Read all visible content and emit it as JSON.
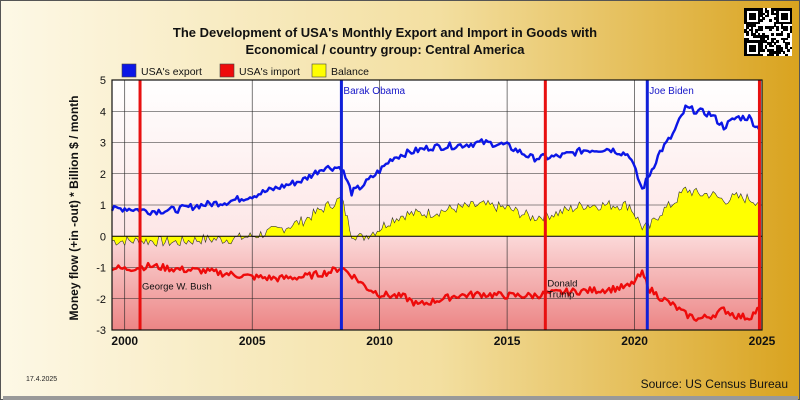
{
  "header": {
    "title_line1": "The Development of USA's Monthly Export and Import in Goods with",
    "title_line2": "Economical / country group: Central America"
  },
  "footer": {
    "date": "17.4.2025",
    "source": "Source: US Census Bureau"
  },
  "colors": {
    "export": "#0b16e6",
    "import": "#ee0b0b",
    "balance": "#ffff00",
    "president_marker_red": "#e81010",
    "president_marker_blue": "#1020d8"
  },
  "chart_data": {
    "type": "line",
    "title": "The Development of USA's Monthly Export and Import in Goods with Economical / country group: Central America",
    "ylabel": "Money flow (+in -out) * Billion $ / month",
    "xlabel": "",
    "xlim": [
      1999.5,
      2025.0
    ],
    "ylim": [
      -3,
      5
    ],
    "xticks": [
      2000,
      2005,
      2010,
      2015,
      2020,
      2025
    ],
    "yticks": [
      -3,
      -2,
      -1,
      0,
      1,
      2,
      3,
      4,
      5
    ],
    "grid": true,
    "legend": "top-left",
    "series": [
      {
        "name": "USA's export",
        "type": "line",
        "x": [
          1999.5,
          2000.0,
          2001.0,
          2002.0,
          2003.0,
          2004.0,
          2005.0,
          2006.0,
          2007.0,
          2007.8,
          2008.5,
          2008.9,
          2009.3,
          2010.0,
          2010.5,
          2011.0,
          2012.0,
          2013.0,
          2014.0,
          2014.7,
          2015.0,
          2016.0,
          2017.0,
          2018.0,
          2019.0,
          2019.8,
          2020.3,
          2020.6,
          2021.0,
          2021.5,
          2022.0,
          2022.5,
          2023.0,
          2023.5,
          2024.0,
          2024.5,
          2024.9
        ],
        "y": [
          0.85,
          0.9,
          0.8,
          0.85,
          1.0,
          1.1,
          1.3,
          1.55,
          1.8,
          2.2,
          2.2,
          1.4,
          1.6,
          2.1,
          2.5,
          2.65,
          2.85,
          2.9,
          3.0,
          2.95,
          2.9,
          2.5,
          2.55,
          2.75,
          2.8,
          2.6,
          1.5,
          2.0,
          2.7,
          3.25,
          4.1,
          4.0,
          3.9,
          3.5,
          3.8,
          3.8,
          3.4
        ]
      },
      {
        "name": "USA's import",
        "type": "line",
        "x": [
          1999.5,
          2000.0,
          2001.0,
          2002.0,
          2003.0,
          2004.0,
          2005.0,
          2006.0,
          2007.0,
          2008.0,
          2008.5,
          2009.0,
          2009.5,
          2010.0,
          2011.0,
          2011.5,
          2012.0,
          2013.0,
          2014.0,
          2015.0,
          2016.0,
          2017.0,
          2018.0,
          2019.0,
          2019.8,
          2020.3,
          2020.6,
          2021.0,
          2021.5,
          2022.0,
          2022.5,
          2023.0,
          2023.5,
          2024.0,
          2024.5,
          2024.9
        ],
        "y": [
          -1.0,
          -1.05,
          -0.95,
          -1.05,
          -1.1,
          -1.2,
          -1.3,
          -1.35,
          -1.3,
          -1.15,
          -1.0,
          -1.3,
          -1.65,
          -1.85,
          -1.95,
          -2.2,
          -2.1,
          -1.9,
          -1.85,
          -1.9,
          -1.9,
          -1.8,
          -1.75,
          -1.7,
          -1.6,
          -1.2,
          -1.7,
          -1.95,
          -2.2,
          -2.5,
          -2.65,
          -2.55,
          -2.35,
          -2.55,
          -2.6,
          -2.3
        ]
      },
      {
        "name": "Balance",
        "type": "area",
        "x": [
          1999.5,
          2000.0,
          2001.0,
          2002.0,
          2003.0,
          2004.0,
          2005.0,
          2006.0,
          2007.0,
          2007.8,
          2008.5,
          2008.9,
          2009.3,
          2010.0,
          2010.5,
          2011.0,
          2012.0,
          2013.0,
          2014.0,
          2015.0,
          2016.0,
          2017.0,
          2018.0,
          2019.0,
          2019.8,
          2020.3,
          2020.6,
          2021.0,
          2021.5,
          2022.0,
          2022.5,
          2023.0,
          2023.5,
          2024.0,
          2024.5,
          2024.9
        ],
        "y": [
          -0.15,
          -0.15,
          -0.15,
          -0.2,
          -0.1,
          -0.1,
          0.0,
          0.2,
          0.5,
          0.9,
          1.2,
          0.1,
          -0.05,
          0.25,
          0.55,
          0.7,
          0.75,
          0.9,
          1.0,
          0.9,
          0.6,
          0.75,
          1.0,
          1.0,
          1.0,
          0.3,
          0.3,
          0.75,
          1.05,
          1.5,
          1.35,
          1.35,
          1.15,
          1.25,
          1.2,
          1.1
        ]
      }
    ],
    "markers": [
      {
        "x": 2000.6,
        "label": "George W. Bush",
        "label_y": -1.7,
        "color": "red"
      },
      {
        "x": 2008.5,
        "label": "Barak Obama",
        "label_y": 4.55,
        "color": "blue"
      },
      {
        "x": 2016.5,
        "label": "Donald Trump",
        "label_y": -1.6,
        "color": "red"
      },
      {
        "x": 2020.5,
        "label": "Joe Biden",
        "label_y": 4.55,
        "color": "blue"
      },
      {
        "x": 2024.9,
        "label": "Donald Trump",
        "label_y": -1.6,
        "color": "red"
      }
    ]
  }
}
